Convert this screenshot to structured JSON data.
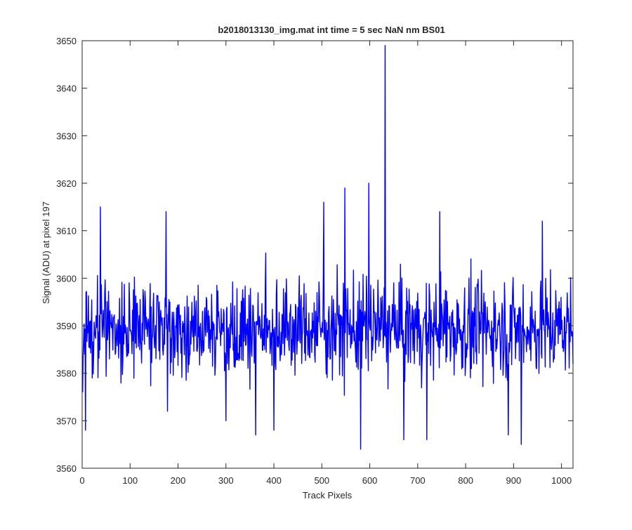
{
  "chart_data": {
    "type": "line",
    "title": "b2018013130_img.mat int time = 5 sec  NaN nm BS01",
    "xlabel": "Track Pixels",
    "ylabel": "Signal (ADU) at pixel 197",
    "xlim": [
      0,
      1024
    ],
    "ylim": [
      3560,
      3650
    ],
    "xticks": [
      0,
      100,
      200,
      300,
      400,
      500,
      600,
      700,
      800,
      900,
      1000
    ],
    "yticks": [
      3560,
      3570,
      3580,
      3590,
      3600,
      3610,
      3620,
      3630,
      3640,
      3650
    ],
    "grid": false,
    "line_color": "#0000ff",
    "series": [
      {
        "x_start": 1,
        "x_step": 1,
        "count": 1024,
        "mean": 3589.5,
        "std": 7,
        "min": 3564,
        "max": 3649,
        "notable_points": [
          {
            "x": 1,
            "y": 3576
          },
          {
            "x": 7,
            "y": 3568
          },
          {
            "x": 38,
            "y": 3615
          },
          {
            "x": 175,
            "y": 3614
          },
          {
            "x": 178,
            "y": 3572
          },
          {
            "x": 300,
            "y": 3570
          },
          {
            "x": 362,
            "y": 3567
          },
          {
            "x": 400,
            "y": 3568
          },
          {
            "x": 504,
            "y": 3616
          },
          {
            "x": 548,
            "y": 3619
          },
          {
            "x": 581,
            "y": 3564
          },
          {
            "x": 598,
            "y": 3620
          },
          {
            "x": 632,
            "y": 3649
          },
          {
            "x": 671,
            "y": 3566
          },
          {
            "x": 719,
            "y": 3566
          },
          {
            "x": 746,
            "y": 3614
          },
          {
            "x": 889,
            "y": 3567
          },
          {
            "x": 916,
            "y": 3565
          },
          {
            "x": 960,
            "y": 3612
          }
        ]
      }
    ]
  }
}
